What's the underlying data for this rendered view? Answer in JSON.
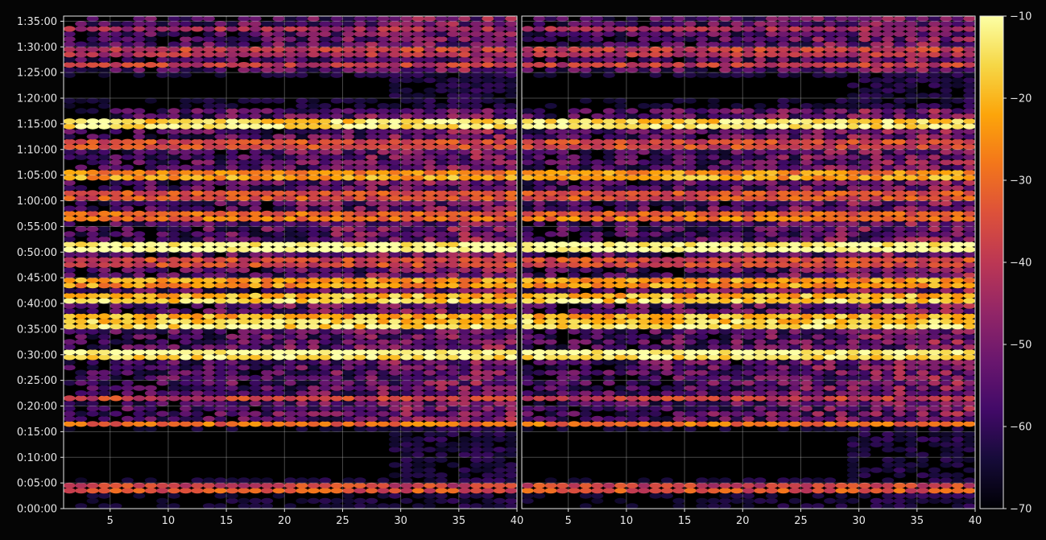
{
  "chart_data": {
    "type": "heatmap",
    "title": "",
    "xlabel": "",
    "ylabel": "",
    "grid": true,
    "panels": [
      {
        "name": "",
        "xlim": [
          1,
          40
        ],
        "xticks": [
          5,
          10,
          15,
          20,
          25,
          30,
          35,
          40
        ]
      },
      {
        "name": "",
        "xlim": [
          1,
          40
        ],
        "xticks": [
          5,
          10,
          15,
          20,
          25,
          30,
          35,
          40
        ]
      }
    ],
    "ylim": [
      "0:00:00",
      "1:36:00"
    ],
    "yticks": [
      "0:00:00",
      "0:05:00",
      "0:10:00",
      "0:15:00",
      "0:20:00",
      "0:25:00",
      "0:30:00",
      "0:35:00",
      "0:40:00",
      "0:45:00",
      "0:50:00",
      "0:55:00",
      "1:00:00",
      "1:05:00",
      "1:10:00",
      "1:15:00",
      "1:20:00",
      "1:25:00",
      "1:30:00",
      "1:35:00"
    ],
    "colorbar": {
      "colormap": "inferno",
      "range": [
        -70,
        -10
      ],
      "ticks": [
        "−70",
        "−60",
        "−50",
        "−40",
        "−30",
        "−20",
        "−10"
      ]
    },
    "strong_rows_minutes": [
      {
        "minute": 4.2,
        "level": -40
      },
      {
        "minute": 16.5,
        "level": -30
      },
      {
        "minute": 21.5,
        "level": -38
      },
      {
        "minute": 29.8,
        "level": -16
      },
      {
        "minute": 36.2,
        "level": -20
      },
      {
        "minute": 37.0,
        "level": -24
      },
      {
        "minute": 41.2,
        "level": -22
      },
      {
        "minute": 44.0,
        "level": -28
      },
      {
        "minute": 48.0,
        "level": -40
      },
      {
        "minute": 51.2,
        "level": -13
      },
      {
        "minute": 57.2,
        "level": -34
      },
      {
        "minute": 61.0,
        "level": -38
      },
      {
        "minute": 65.2,
        "level": -28
      },
      {
        "minute": 71.0,
        "level": -40
      },
      {
        "minute": 75.2,
        "level": -18
      },
      {
        "minute": 86.6,
        "level": -40
      },
      {
        "minute": 88.8,
        "level": -44
      },
      {
        "minute": 93.5,
        "level": -44
      }
    ]
  }
}
